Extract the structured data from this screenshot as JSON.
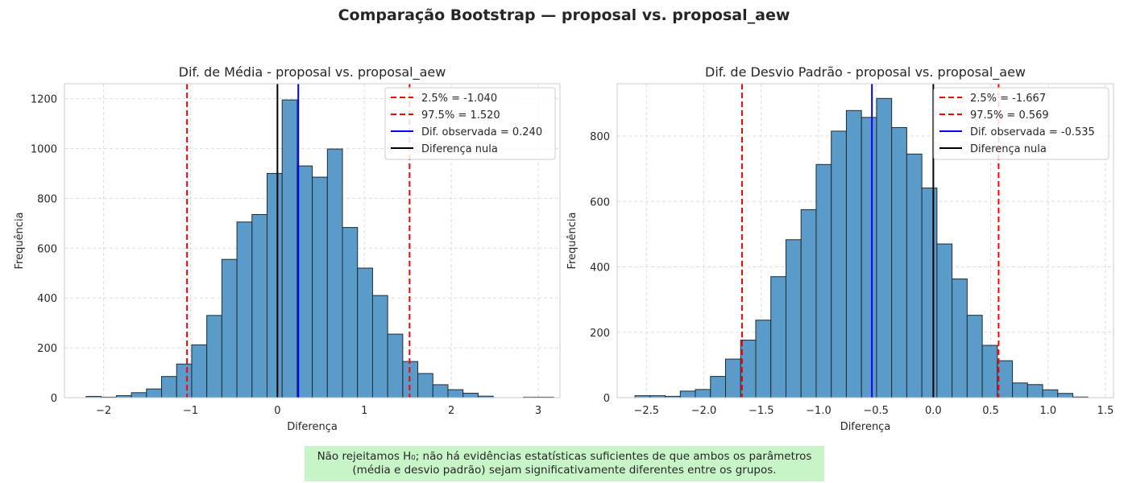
{
  "suptitle": "Comparação Bootstrap — proposal vs. proposal_aew",
  "colors": {
    "bar_fill": "#5b9bc9",
    "bar_edge": "#1f2a33",
    "ci_line": "#ff0000",
    "observed_line": "#0000ff",
    "null_line": "#000000",
    "grid": "#dddddd",
    "axes_edge": "#cccccc",
    "conclusion_bg": "#c8f5c8"
  },
  "conclusion": {
    "line1": "Não rejeitamos H₀; não há evidências estatísticas suficientes de que ambos os parâmetros",
    "line2": "(média e desvio padrão) sejam significativamente diferentes entre os grupos."
  },
  "chart_data": [
    {
      "type": "bar",
      "subtype": "histogram",
      "title": "Dif. de Média - proposal vs. proposal_aew",
      "xlabel": "Diferença",
      "ylabel": "Frequência",
      "xlim": [
        -2.45,
        3.25
      ],
      "ylim": [
        0,
        1260
      ],
      "xticks": [
        -2,
        -1,
        0,
        1,
        2,
        3
      ],
      "xtick_labels": [
        "−2",
        "−1",
        "0",
        "1",
        "2",
        "3"
      ],
      "yticks": [
        0,
        200,
        400,
        600,
        800,
        1000,
        1200
      ],
      "ytick_labels": [
        "0",
        "200",
        "400",
        "600",
        "800",
        "1000",
        "1200"
      ],
      "grid": true,
      "legend_position": "upper right",
      "bins": {
        "start": -2.2,
        "width": 0.1734,
        "counts": [
          5,
          2,
          8,
          20,
          35,
          85,
          135,
          212,
          330,
          555,
          705,
          735,
          900,
          1195,
          930,
          885,
          998,
          683,
          520,
          410,
          255,
          145,
          97,
          52,
          32,
          18,
          6,
          0,
          0,
          2,
          2
        ]
      },
      "vlines": [
        {
          "label": "2.5% = -1.040",
          "x": -1.04,
          "color": "#ff0000",
          "style": "dashed"
        },
        {
          "label": "97.5% = 1.520",
          "x": 1.52,
          "color": "#ff0000",
          "style": "dashed"
        },
        {
          "label": "Dif. observada = 0.240",
          "x": 0.24,
          "color": "#0000ff",
          "style": "solid"
        },
        {
          "label": "Diferença nula",
          "x": 0,
          "color": "#000000",
          "style": "solid"
        }
      ]
    },
    {
      "type": "bar",
      "subtype": "histogram",
      "title": "Dif. de Desvio Padrão - proposal vs. proposal_aew",
      "xlabel": "Diferença",
      "ylabel": "Frequência",
      "xlim": [
        -2.755,
        1.57
      ],
      "ylim": [
        0,
        960
      ],
      "xticks": [
        -2.5,
        -2.0,
        -1.5,
        -1.0,
        -0.5,
        0.0,
        0.5,
        1.0,
        1.5
      ],
      "xtick_labels": [
        "−2.5",
        "−2.0",
        "−1.5",
        "−1.0",
        "−0.5",
        "0.0",
        "0.5",
        "1.0",
        "1.5"
      ],
      "yticks": [
        0,
        200,
        400,
        600,
        800
      ],
      "ytick_labels": [
        "0",
        "200",
        "400",
        "600",
        "800"
      ],
      "grid": true,
      "legend_position": "upper right",
      "bins": {
        "start": -2.6,
        "width": 0.13158,
        "counts": [
          6,
          6,
          4,
          20,
          25,
          65,
          118,
          176,
          237,
          370,
          483,
          575,
          713,
          815,
          878,
          857,
          915,
          826,
          745,
          641,
          470,
          363,
          252,
          160,
          113,
          45,
          40,
          24,
          13,
          2
        ]
      },
      "vlines": [
        {
          "label": "2.5% = -1.667",
          "x": -1.667,
          "color": "#ff0000",
          "style": "dashed"
        },
        {
          "label": "97.5% = 0.569",
          "x": 0.569,
          "color": "#ff0000",
          "style": "dashed"
        },
        {
          "label": "Dif. observada = -0.535",
          "x": -0.535,
          "color": "#0000ff",
          "style": "solid"
        },
        {
          "label": "Diferença nula",
          "x": 0,
          "color": "#000000",
          "style": "solid"
        }
      ]
    }
  ]
}
